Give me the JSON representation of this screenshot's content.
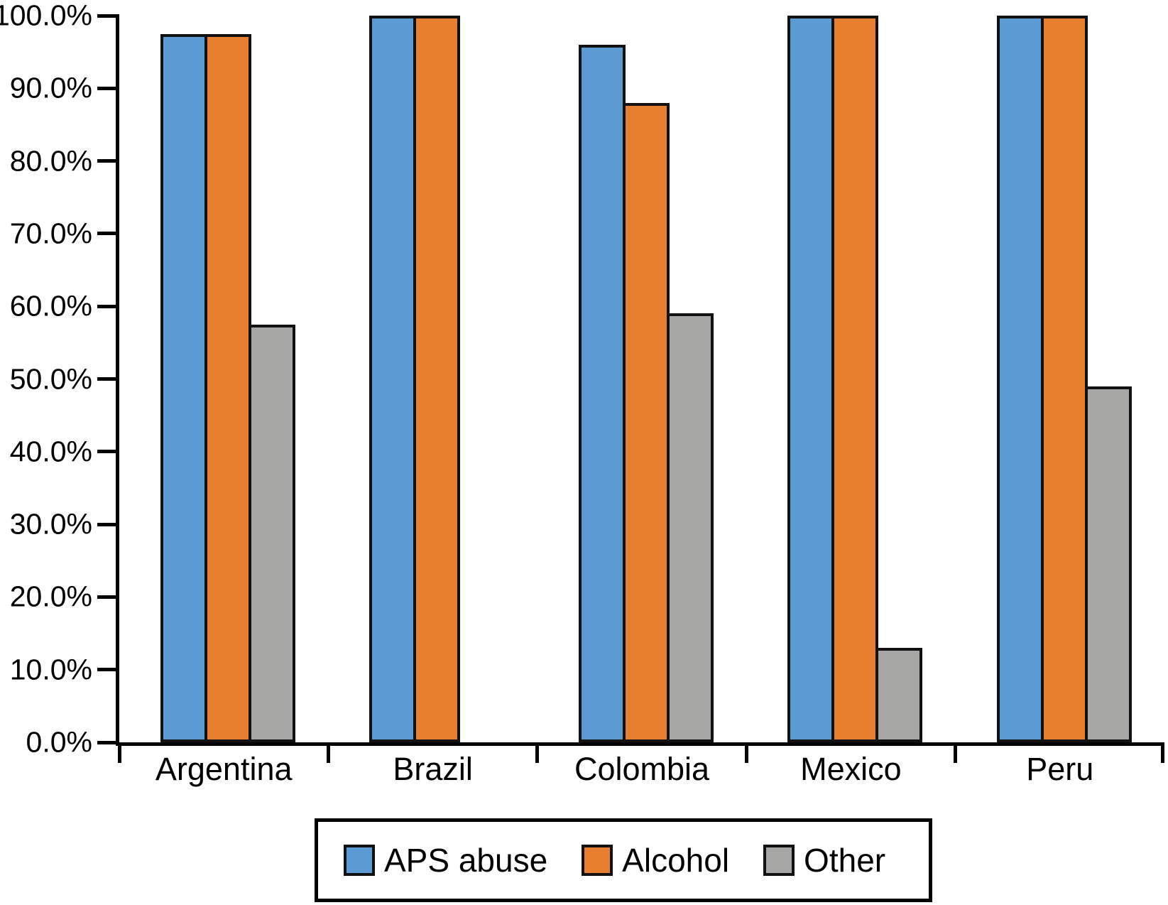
{
  "chart_data": {
    "type": "bar",
    "title": "",
    "xlabel": "",
    "ylabel": "",
    "categories": [
      "Argentina",
      "Brazil",
      "Colombia",
      "Mexico",
      "Peru"
    ],
    "series": [
      {
        "name": "APS abuse",
        "color": "#5B9AD2",
        "values": [
          97.5,
          100,
          96,
          100,
          100
        ]
      },
      {
        "name": "Alcohol",
        "color": "#E87F2F",
        "values": [
          97.5,
          100,
          88,
          100,
          100
        ]
      },
      {
        "name": "Other",
        "color": "#A6A6A4",
        "values": [
          57.5,
          0,
          59,
          13,
          49
        ]
      }
    ],
    "ylim": [
      0,
      100
    ],
    "ytick_labels": [
      "100.0%",
      "90.0%",
      "80.0%",
      "70.0%",
      "60.0%",
      "50.0%",
      "40.0%",
      "30.0%",
      "20.0%",
      "10.0%",
      "0.0%"
    ],
    "ytick_values": [
      100,
      90,
      80,
      70,
      60,
      50,
      40,
      30,
      20,
      10,
      0
    ],
    "grid": false,
    "legend_position": "bottom",
    "bar_border_color": "#111111",
    "axis_color": "#000000"
  }
}
